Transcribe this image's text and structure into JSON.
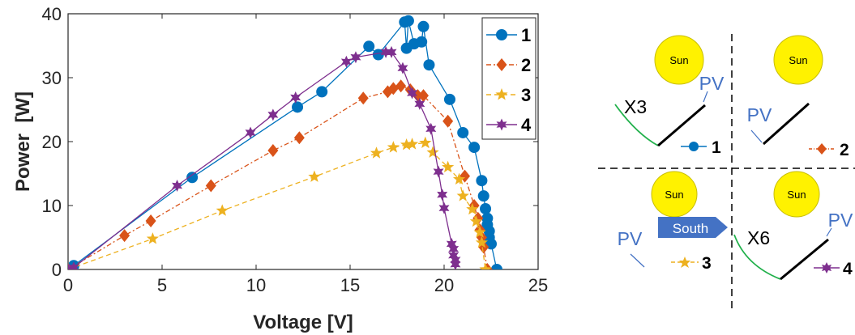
{
  "chart_data": {
    "type": "line",
    "xlabel": "Voltage [V]",
    "ylabel": "Power  [W]",
    "xlim": [
      0,
      25
    ],
    "ylim": [
      0,
      40
    ],
    "xticks": [
      0,
      5,
      10,
      15,
      20,
      25
    ],
    "yticks": [
      0,
      10,
      20,
      30,
      40
    ],
    "grid": false,
    "legend_position": "top-right",
    "series": [
      {
        "name": "1",
        "color": "#0072BD",
        "marker": "circle",
        "line": "solid",
        "points": [
          [
            0,
            0
          ],
          [
            0.3,
            0.6
          ],
          [
            6.6,
            14.4
          ],
          [
            12.2,
            25.4
          ],
          [
            13.5,
            27.8
          ],
          [
            16.0,
            34.9
          ],
          [
            16.5,
            33.6
          ],
          [
            17.9,
            38.7
          ],
          [
            18.0,
            34.6
          ],
          [
            18.1,
            38.9
          ],
          [
            18.4,
            35.3
          ],
          [
            18.8,
            35.6
          ],
          [
            18.9,
            38.0
          ],
          [
            19.2,
            32.0
          ],
          [
            20.3,
            26.6
          ],
          [
            21.0,
            21.4
          ],
          [
            21.6,
            19.1
          ],
          [
            22.0,
            13.9
          ],
          [
            22.1,
            11.5
          ],
          [
            22.2,
            9.5
          ],
          [
            22.3,
            8.0
          ],
          [
            22.3,
            7.0
          ],
          [
            22.4,
            6.0
          ],
          [
            22.4,
            5.0
          ],
          [
            22.5,
            4.0
          ],
          [
            22.8,
            0
          ]
        ]
      },
      {
        "name": "2",
        "color": "#D95319",
        "marker": "diamond",
        "line": "dashdot",
        "points": [
          [
            0,
            0
          ],
          [
            3.0,
            5.3
          ],
          [
            4.4,
            7.6
          ],
          [
            7.6,
            13.1
          ],
          [
            10.9,
            18.6
          ],
          [
            12.3,
            20.6
          ],
          [
            15.7,
            26.8
          ],
          [
            17.0,
            27.8
          ],
          [
            17.3,
            28.3
          ],
          [
            17.7,
            28.7
          ],
          [
            18.2,
            28.1
          ],
          [
            18.6,
            27.2
          ],
          [
            18.9,
            27.2
          ],
          [
            20.2,
            23.2
          ],
          [
            21.1,
            14.6
          ],
          [
            21.6,
            10.0
          ],
          [
            21.8,
            8.0
          ],
          [
            21.9,
            6.2
          ],
          [
            22.0,
            5.0
          ],
          [
            22.1,
            3.5
          ],
          [
            22.3,
            0
          ]
        ]
      },
      {
        "name": "3",
        "color": "#EDB120",
        "marker": "star",
        "line": "dashed",
        "points": [
          [
            0,
            0
          ],
          [
            4.5,
            4.8
          ],
          [
            8.2,
            9.2
          ],
          [
            13.1,
            14.5
          ],
          [
            16.4,
            18.2
          ],
          [
            17.3,
            19.1
          ],
          [
            18.0,
            19.5
          ],
          [
            18.3,
            19.6
          ],
          [
            19.0,
            19.8
          ],
          [
            19.4,
            18.3
          ],
          [
            20.2,
            16.0
          ],
          [
            20.8,
            14.1
          ],
          [
            21.0,
            11.5
          ],
          [
            21.5,
            9.4
          ],
          [
            21.7,
            7.5
          ],
          [
            21.9,
            5.8
          ],
          [
            22.0,
            4.2
          ],
          [
            22.2,
            0
          ]
        ]
      },
      {
        "name": "4",
        "color": "#7E2F8E",
        "marker": "star6",
        "line": "solid",
        "points": [
          [
            0,
            0
          ],
          [
            0.3,
            0.3
          ],
          [
            5.8,
            13.1
          ],
          [
            9.7,
            21.4
          ],
          [
            10.9,
            24.2
          ],
          [
            12.1,
            26.9
          ],
          [
            14.8,
            32.5
          ],
          [
            15.3,
            33.2
          ],
          [
            16.9,
            34.0
          ],
          [
            17.2,
            34.0
          ],
          [
            17.8,
            31.5
          ],
          [
            18.3,
            27.6
          ],
          [
            18.7,
            25.9
          ],
          [
            19.3,
            22.0
          ],
          [
            19.7,
            15.3
          ],
          [
            19.9,
            11.7
          ],
          [
            20.0,
            9.6
          ],
          [
            20.4,
            4.0
          ],
          [
            20.5,
            3.2
          ],
          [
            20.5,
            2.2
          ],
          [
            20.6,
            1.5
          ],
          [
            20.6,
            0.8
          ]
        ]
      }
    ]
  },
  "diagram": {
    "quadrants": [
      {
        "sun_label": "Sun",
        "pv_label": "PV",
        "tilt_label": "X3",
        "legend_label": "1"
      },
      {
        "sun_label": "Sun",
        "pv_label": "PV",
        "legend_label": "2"
      },
      {
        "sun_label": "Sun",
        "pv_label": "PV",
        "direction_label": "South",
        "legend_label": "3"
      },
      {
        "sun_label": "Sun",
        "pv_label": "PV",
        "tilt_label": "X6",
        "legend_label": "4"
      }
    ],
    "colors": {
      "sun": "#FFF200",
      "panel": "#000000",
      "ground": "#22B14C",
      "pv_text": "#4472C4",
      "arrow": "#4472C4"
    }
  }
}
